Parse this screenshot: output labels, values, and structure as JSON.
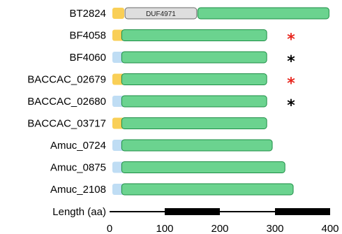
{
  "colors": {
    "signal_yellow": "#F9CF57",
    "signal_blue": "#BFDDF4",
    "main_domain_green": "#6BD38F",
    "main_domain_stroke": "#1E8E46",
    "duf_grey": "#DEDEDE",
    "star_red": "#E8261E",
    "star_black": "#000000"
  },
  "proteins": [
    {
      "name": "BT2824",
      "signal_type": "yellow",
      "length": 398,
      "duf_label": "DUF4971",
      "duf_start": 28,
      "duf_end": 158,
      "star": ""
    },
    {
      "name": "BF4058",
      "signal_type": "yellow",
      "length": 285,
      "star": "red"
    },
    {
      "name": "BF4060",
      "signal_type": "blue",
      "length": 285,
      "star": "black"
    },
    {
      "name": "BACCAC_02679",
      "signal_type": "yellow",
      "length": 285,
      "star": "red"
    },
    {
      "name": "BACCAC_02680",
      "signal_type": "blue",
      "length": 285,
      "star": "black"
    },
    {
      "name": "BACCAC_03717",
      "signal_type": "yellow",
      "length": 285,
      "star": ""
    },
    {
      "name": "Amuc_0724",
      "signal_type": "blue",
      "length": 295,
      "star": ""
    },
    {
      "name": "Amuc_0875",
      "signal_type": "blue",
      "length": 318,
      "star": ""
    },
    {
      "name": "Amuc_2108",
      "signal_type": "blue",
      "length": 333,
      "star": ""
    }
  ],
  "scale": {
    "label": "Length (aa)",
    "ticks": [
      "0",
      "100",
      "200",
      "300",
      "400"
    ],
    "tick_values": [
      0,
      100,
      200,
      300,
      400
    ],
    "max": 400
  },
  "star_symbol": "*"
}
